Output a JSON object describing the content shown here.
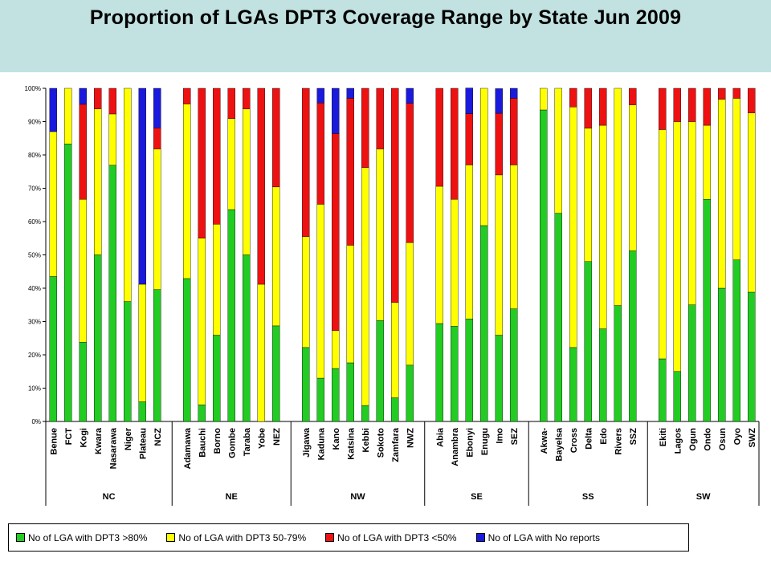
{
  "chart_data": {
    "type": "bar",
    "stacked": "percent",
    "title": "Proportion of LGAs DPT3 Coverage Range by State Jun 2009",
    "ylim": [
      0,
      100
    ],
    "yticks": [
      "0%",
      "10%",
      "20%",
      "30%",
      "40%",
      "50%",
      "60%",
      "70%",
      "80%",
      "90%",
      "100%"
    ],
    "grid": false,
    "legend_position": "bottom",
    "groups": [
      {
        "name": "NC",
        "categories": [
          "Benue",
          "FCT",
          "Kogi",
          "Kwara",
          "Nasarawa",
          "Niger",
          "Plateau",
          "NCZ"
        ]
      },
      {
        "name": "NE",
        "categories": [
          "Adamawa",
          "Bauchi",
          "Borno",
          "Gombe",
          "Taraba",
          "Yobe",
          "NEZ"
        ]
      },
      {
        "name": "NW",
        "categories": [
          "Jigawa",
          "Kaduna",
          "Kano",
          "Katsina",
          "Kebbi",
          "Sokoto",
          "Zamfara",
          "NWZ"
        ]
      },
      {
        "name": "SE",
        "categories": [
          "Abia",
          "Anambra",
          "Ebonyi",
          "Enugu",
          "Imo",
          "SEZ"
        ]
      },
      {
        "name": "SS",
        "categories": [
          "Akwa-",
          "Bayelsa",
          "Cross",
          "Delta",
          "Edo",
          "Rivers",
          "SSZ"
        ]
      },
      {
        "name": "SW",
        "categories": [
          "Ekiti",
          "Lagos",
          "Ogun",
          "Ondo",
          "Osun",
          "Oyo",
          "SWZ"
        ]
      }
    ],
    "series": [
      {
        "name": "No of LGA with DPT3 >80%",
        "color": "#22cc22",
        "values": [
          43.5,
          83.3,
          23.8,
          50,
          76.9,
          36,
          5.9,
          39.6,
          42.9,
          5,
          25.9,
          63.6,
          50,
          0,
          28.7,
          22.2,
          13,
          15.9,
          17.6,
          4.8,
          30.3,
          7.1,
          16.9,
          29.4,
          28.6,
          30.8,
          58.8,
          25.9,
          33.8,
          93.5,
          62.5,
          22.2,
          48,
          27.8,
          34.8,
          51.2,
          18.8,
          15,
          35,
          66.7,
          40,
          48.5,
          38.8
        ]
      },
      {
        "name": "No of LGA with DPT3 50-79%",
        "color": "#ffff00",
        "values": [
          43.5,
          16.7,
          42.9,
          43.8,
          15.4,
          64,
          35.3,
          42.2,
          52.4,
          50,
          33.3,
          27.3,
          43.8,
          41.2,
          41.7,
          33.3,
          52.2,
          11.4,
          35.3,
          71.4,
          51.5,
          28.6,
          36.8,
          41.2,
          38.1,
          46.2,
          41.2,
          48.1,
          43.2,
          6.5,
          37.5,
          72.2,
          40,
          61.1,
          65.2,
          43.8,
          68.8,
          75,
          55,
          22.2,
          56.7,
          48.5,
          53.8
        ]
      },
      {
        "name": "No of LGA with DPT3 <50%",
        "color": "#ee1111",
        "values": [
          0,
          0,
          28.5,
          6.2,
          7.7,
          0,
          0,
          6.3,
          4.7,
          45,
          40.8,
          9.1,
          6.2,
          58.8,
          29.6,
          44.5,
          30.4,
          59.1,
          44.1,
          23.8,
          18.2,
          64.3,
          41.8,
          29.4,
          33.3,
          15.4,
          0,
          18.5,
          20,
          0,
          0,
          5.6,
          12,
          11.1,
          0,
          5,
          12.4,
          10,
          10,
          11.1,
          3.3,
          3,
          7.4
        ]
      },
      {
        "name": "No of LGA with No reports",
        "color": "#1a1add",
        "values": [
          13,
          0,
          4.8,
          0,
          0,
          0,
          58.8,
          11.9,
          0,
          0,
          0,
          0,
          0,
          0,
          0,
          0,
          4.4,
          13.6,
          3,
          0,
          0,
          0,
          4.5,
          0,
          0,
          7.7,
          0,
          7.4,
          3,
          0,
          0,
          0,
          0,
          0,
          0,
          0,
          0,
          0,
          0,
          0,
          0,
          0,
          0
        ]
      }
    ]
  }
}
